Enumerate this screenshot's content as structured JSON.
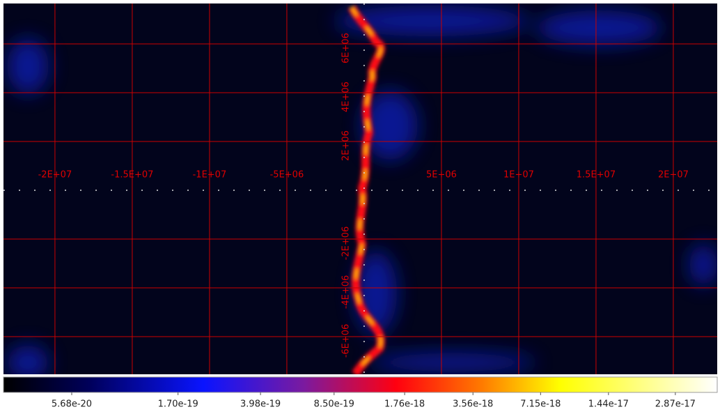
{
  "chart_data": {
    "type": "heatmap",
    "xlim": [
      -23330000,
      22840000
    ],
    "ylim": [
      -7543000,
      7657000
    ],
    "xticks": [
      {
        "value": -20000000,
        "label": "-2E+07"
      },
      {
        "value": -15000000,
        "label": "-1.5E+07"
      },
      {
        "value": -10000000,
        "label": "-1E+07"
      },
      {
        "value": -5000000,
        "label": "-5E+06"
      },
      {
        "value": 5000000,
        "label": "5E+06"
      },
      {
        "value": 10000000,
        "label": "1E+07"
      },
      {
        "value": 15000000,
        "label": "1.5E+07"
      },
      {
        "value": 20000000,
        "label": "2E+07"
      }
    ],
    "yticks": [
      {
        "value": 6000000,
        "label": "6E+06"
      },
      {
        "value": 4000000,
        "label": "4E+06"
      },
      {
        "value": 2000000,
        "label": "2E+06"
      },
      {
        "value": -2000000,
        "label": "-2E+06"
      },
      {
        "value": -4000000,
        "label": "-4E+06"
      },
      {
        "value": -6000000,
        "label": "-6E+06"
      }
    ],
    "grid": true,
    "grid_color": "#cc0000",
    "colorbar": {
      "log_scale": true,
      "lim": [
        2.81e-20,
        4.42e-17
      ],
      "ticks": [
        5.68e-20,
        {
          "value": 1.7e-19,
          "label": "1.70e-19"
        },
        3.98e-19,
        {
          "value": 8.5e-19,
          "label": "8.50e-19"
        },
        1.76e-18,
        3.56e-18,
        7.15e-18,
        1.44e-17,
        2.87e-17
      ]
    }
  }
}
